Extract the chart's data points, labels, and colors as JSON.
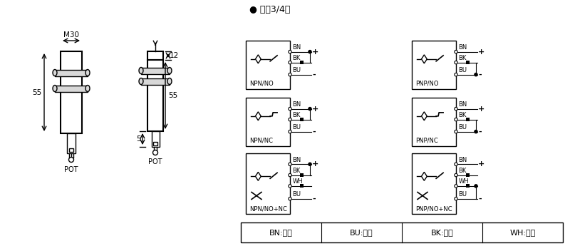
{
  "bg_color": "#ffffff",
  "line_color": "#000000",
  "title_dc": "● 直流3/4线",
  "legend_items": [
    "BN:棕色",
    "BU:兰色",
    "BK:黑色",
    "WH:白色"
  ],
  "dim_m30": "M30",
  "dim_55_left": "55",
  "dim_12": "12",
  "dim_55_right": "55",
  "dim_5": "5",
  "pot": "POT",
  "npn_no": "NPN/NO",
  "npn_nc": "NPN/NC",
  "npn_nonc": "NPN/NO+NC",
  "pnp_no": "PNP/NO",
  "pnp_nc": "PNP/NC",
  "pnp_nonc": "PNP/NO+NC",
  "bn": "BN",
  "bk": "BK",
  "bu": "BU",
  "wh": "WH"
}
